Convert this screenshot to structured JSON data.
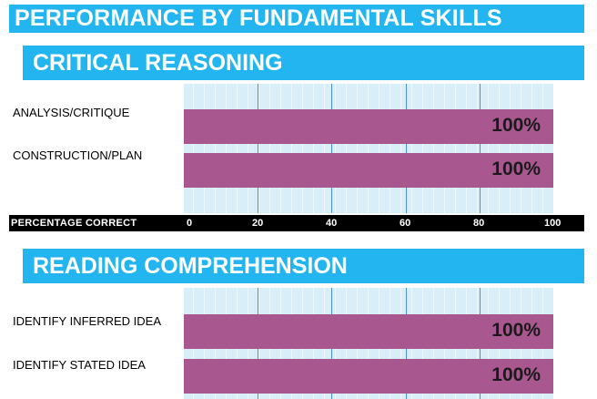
{
  "page_title": "PERFORMANCE BY FUNDAMENTAL SKILLS",
  "chart_data": [
    {
      "type": "bar",
      "orientation": "horizontal",
      "title": "CRITICAL REASONING",
      "categories": [
        "ANALYSIS/CRITIQUE",
        "CONSTRUCTION/PLAN"
      ],
      "values": [
        100,
        100
      ],
      "value_labels": [
        "100%",
        "100%"
      ],
      "xlabel": "PERCENTAGE CORRECT",
      "xticks": [
        "0",
        "20",
        "40",
        "60",
        "80",
        "100"
      ],
      "xlim": [
        0,
        100
      ],
      "bar_color": "#a9578f",
      "grid": true
    },
    {
      "type": "bar",
      "orientation": "horizontal",
      "title": "READING COMPREHENSION",
      "categories": [
        "IDENTIFY INFERRED IDEA",
        "IDENTIFY STATED IDEA"
      ],
      "values": [
        100,
        100
      ],
      "value_labels": [
        "100%",
        "100%"
      ],
      "xlim": [
        0,
        100
      ],
      "bar_color": "#a9578f",
      "grid": true
    }
  ],
  "colors": {
    "header": "#23b5ef",
    "plot_bg": "#d8eef9",
    "gridline": "#4d8fd1",
    "bar": "#a9578f"
  }
}
